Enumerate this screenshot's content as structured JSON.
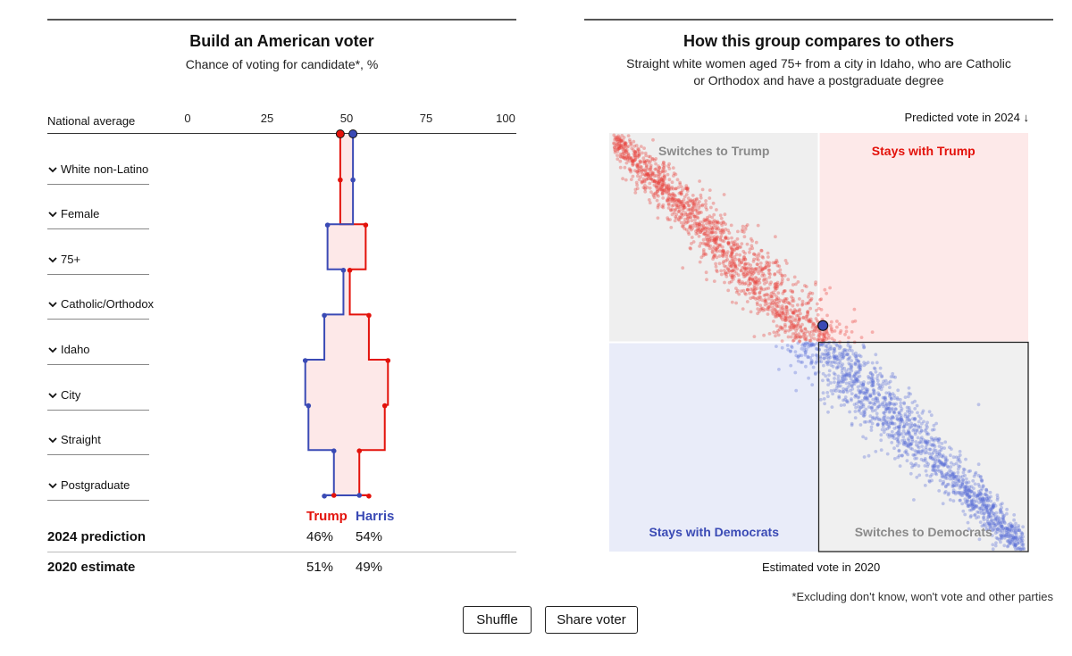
{
  "left": {
    "title": "Build an American voter",
    "subtitle": "Chance of voting for candidate*, %",
    "national_average_label": "National average",
    "attributes": [
      "White non-Latino",
      "Female",
      "75+",
      "Catholic/Orthodox",
      "Idaho",
      "City",
      "Straight",
      "Postgraduate"
    ],
    "legend": {
      "trump": "Trump",
      "harris": "Harris"
    },
    "prediction_2024": {
      "label": "2024 prediction",
      "trump": "46%",
      "harris": "54%"
    },
    "estimate_2020": {
      "label": "2020 estimate",
      "trump": "51%",
      "harris": "49%"
    }
  },
  "right": {
    "title": "How this group compares to others",
    "subtitle_line1": "Straight white women aged 75+ from a city in Idaho, who are Catholic",
    "subtitle_line2": "or Orthodox and have a postgraduate degree",
    "y_axis_label": "Predicted vote in 2024 ↓",
    "x_axis_label": "Estimated vote in 2020",
    "quadrants": {
      "top_left": "Switches to Trump",
      "top_right": "Stays with Trump",
      "bottom_left": "Stays with Democrats",
      "bottom_right": "Switches to Democrats"
    }
  },
  "footnote": "*Excluding don't know, won't vote and other parties",
  "buttons": {
    "shuffle": "Shuffle",
    "share": "Share voter"
  },
  "colors": {
    "trump": "#e3120b",
    "harris": "#3a4ab5",
    "trump_fill": "#fde8e8",
    "dem_fill": "#e9ecf8",
    "neutral_fill": "#f0f0f0"
  },
  "chart_data": [
    {
      "type": "line",
      "title": "Build an American voter",
      "subtitle": "Chance of voting for candidate*, %",
      "xlim": [
        0,
        100
      ],
      "x_ticks": [
        0,
        25,
        50,
        75,
        100
      ],
      "categories": [
        "National average",
        "White non-Latino",
        "Female",
        "75+",
        "Catholic/Orthodox",
        "Idaho",
        "City",
        "Straight",
        "Postgraduate"
      ],
      "series": [
        {
          "name": "Trump",
          "values": [
            48,
            48,
            56,
            51,
            57,
            63,
            62,
            54,
            57
          ]
        },
        {
          "name": "Harris",
          "values": [
            52,
            52,
            44,
            49,
            43,
            37,
            38,
            46,
            43
          ]
        }
      ],
      "final": {
        "Trump": 46,
        "Harris": 54
      }
    },
    {
      "type": "scatter",
      "title": "How this group compares to others",
      "xlabel": "Estimated vote in 2020",
      "ylabel": "Predicted vote in 2024",
      "xlim": [
        0,
        100
      ],
      "ylim": [
        0,
        100
      ],
      "threshold": 50,
      "highlight_point": {
        "x": 51,
        "y": 46
      },
      "points_estimated": 3000
    }
  ]
}
